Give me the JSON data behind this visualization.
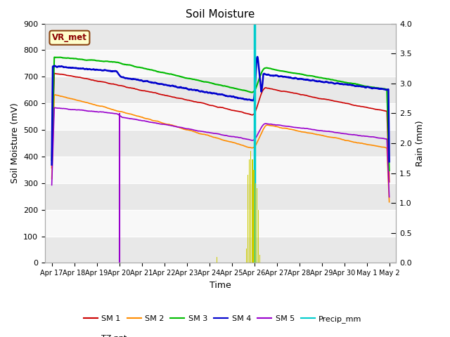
{
  "title": "Soil Moisture",
  "xlabel": "Time",
  "ylabel_left": "Soil Moisture (mV)",
  "ylabel_right": "Rain (mm)",
  "ylim_left": [
    0,
    900
  ],
  "ylim_right": [
    0,
    4.0
  ],
  "x_tick_labels": [
    "Apr 17",
    "Apr 18",
    "Apr 19",
    "Apr 20",
    "Apr 21",
    "Apr 22",
    "Apr 23",
    "Apr 24",
    "Apr 25",
    "Apr 26",
    "Apr 27",
    "Apr 28",
    "Apr 29",
    "Apr 30",
    "May 1",
    "May 2"
  ],
  "sm1_color": "#cc0000",
  "sm2_color": "#ff8c00",
  "sm3_color": "#00bb00",
  "sm4_color": "#0000cc",
  "sm5_color": "#9900cc",
  "precip_color": "#00cccc",
  "tzppt_color": "#cccc00",
  "label_box_color": "#ffffcc",
  "label_box_edge": "#8b4513",
  "label_text": "VR_met",
  "band_color_light": "#e8e8e8",
  "band_color_white": "#f8f8f8"
}
